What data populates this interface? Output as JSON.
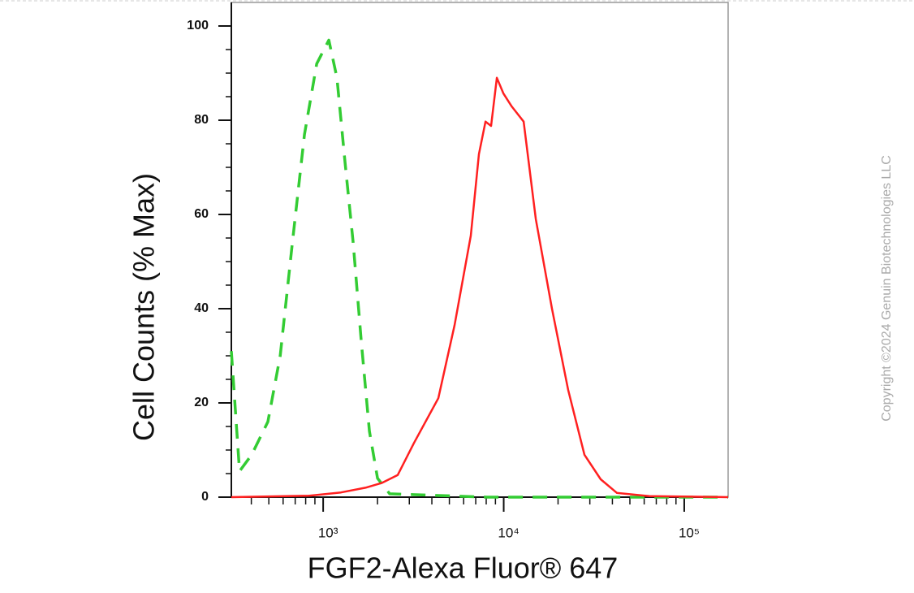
{
  "chart_data": {
    "type": "line",
    "xlabel": "FGF2-Alexa Fluor® 647",
    "ylabel": "Cell Counts (% Max)",
    "watermark": "Copyright ©2024 Genuin Biotechnologies LLC",
    "xscale": "log",
    "xlim": [
      310,
      175000
    ],
    "ylim": [
      0,
      105
    ],
    "xticks": [
      {
        "value": 1000,
        "label": "10³"
      },
      {
        "value": 10000,
        "label": "10⁴"
      },
      {
        "value": 100000,
        "label": "10⁵"
      }
    ],
    "xminorticks": [
      400,
      500,
      600,
      700,
      800,
      900,
      2000,
      3000,
      4000,
      5000,
      6000,
      7000,
      8000,
      9000,
      20000,
      30000,
      40000,
      50000,
      60000,
      70000,
      80000,
      90000
    ],
    "yticks": [
      0,
      20,
      40,
      60,
      80,
      100
    ],
    "yminorticks": [
      5,
      10,
      15,
      25,
      30,
      35,
      45,
      50,
      55,
      65,
      70,
      75,
      85,
      90,
      95
    ],
    "series": [
      {
        "color": "#33cc33",
        "dash": "dashed",
        "x": [
          310,
          344,
          402,
          494,
          578,
          675,
          788,
          921,
          1075,
          1192,
          1322,
          1466,
          1626,
          1803,
          2000,
          2337,
          8090,
          175000
        ],
        "values": [
          31,
          5.5,
          9,
          16,
          30,
          54,
          77,
          92,
          97,
          89,
          71,
          54,
          33,
          14,
          4,
          0.7,
          0,
          0
        ]
      },
      {
        "color": "#ff2020",
        "dash": "solid",
        "x": [
          310,
          830,
          1256,
          1714,
          2109,
          2590,
          3184,
          4343,
          5344,
          6574,
          7290,
          7925,
          8517,
          9160,
          9950,
          11040,
          12890,
          15060,
          18500,
          22750,
          27990,
          34430,
          42360,
          64120,
          175000
        ],
        "values": [
          0,
          0.3,
          1,
          2,
          3,
          4.7,
          11.5,
          21,
          36.5,
          55.5,
          72.8,
          79.7,
          78.8,
          89,
          85.7,
          83,
          79.7,
          59,
          40,
          22.8,
          9,
          3.8,
          0.9,
          0.2,
          0
        ]
      }
    ]
  }
}
